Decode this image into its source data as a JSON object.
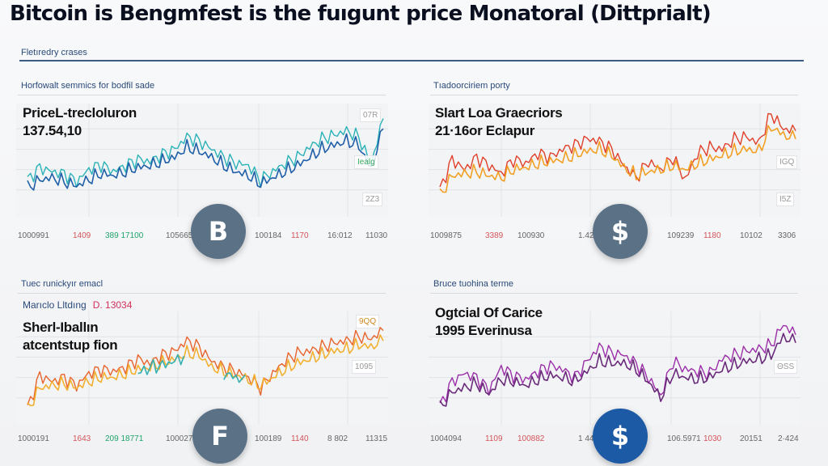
{
  "header": {
    "title": "Bitcoin is Bengmfest is the fuıgunt price Monatoral (Dittprialt)",
    "subheading": "Fletıredry crases"
  },
  "panels": [
    {
      "caption": "Horfowalt semmics for bodfil sade",
      "label_line1": "PriceL-trecloluron",
      "label_line2": "137.54,10",
      "badges": [
        "07R",
        "Iealg",
        "2Z3"
      ],
      "coin_glyph": "B",
      "coin_color": "#5b7186",
      "ticks": [
        {
          "text": "1000991",
          "color": "gray"
        },
        {
          "text": "1409",
          "color": "red"
        },
        {
          "text": "389 17100",
          "color": "green"
        },
        {
          "text": "105665",
          "color": "gray"
        },
        {
          "text": "100184",
          "color": "gray"
        },
        {
          "text": "1170",
          "color": "red"
        },
        {
          "text": "16:012",
          "color": "gray"
        },
        {
          "text": "11030",
          "color": "gray"
        }
      ],
      "series_colors": [
        "#2bb3b8",
        "#1f5fa8"
      ]
    },
    {
      "caption": "Tıadoorciriem porty",
      "label_line1": "Slart Loa Graecriors",
      "label_line2": "21·16or Eclapur",
      "badges": [
        "IGQ",
        "I5Z"
      ],
      "coin_glyph": "$",
      "coin_color": "#5b7186",
      "ticks": [
        {
          "text": "1009875",
          "color": "gray"
        },
        {
          "text": "3389",
          "color": "red"
        },
        {
          "text": "100930",
          "color": "gray"
        },
        {
          "text": "1.421991",
          "color": "gray"
        },
        {
          "text": "109239",
          "color": "gray"
        },
        {
          "text": "1180",
          "color": "red"
        },
        {
          "text": "10102",
          "color": "gray"
        },
        {
          "text": "3306",
          "color": "gray"
        }
      ],
      "series_colors": [
        "#e0402a",
        "#f2a024"
      ]
    },
    {
      "caption": "Tuec runickyır emacl",
      "meta_label": "Marıclo Lltdıng",
      "meta_value": "D. 13034",
      "label_line1": "Sherl-Iballın",
      "label_line2": "atcentstup fion",
      "badges": [
        "9QQ",
        "1095"
      ],
      "coin_glyph": "F",
      "coin_color": "#5b7186",
      "ticks": [
        {
          "text": "1000191",
          "color": "gray"
        },
        {
          "text": "1643",
          "color": "red"
        },
        {
          "text": "209 18771",
          "color": "green"
        },
        {
          "text": "100027",
          "color": "gray"
        },
        {
          "text": "100189",
          "color": "gray"
        },
        {
          "text": "1140",
          "color": "red"
        },
        {
          "text": "8 802",
          "color": "gray"
        },
        {
          "text": "11315",
          "color": "gray"
        }
      ],
      "series_colors": [
        "#e8642c",
        "#f2b030",
        "#35b0b0"
      ]
    },
    {
      "caption": "Bruce tuohina terme",
      "label_line1": "Ogtcial Of Carice",
      "label_line2": "1995 Everinusa",
      "badges": [
        "ΘSS"
      ],
      "coin_glyph": "$",
      "coin_color": "#1c5aa6",
      "ticks": [
        {
          "text": "1004094",
          "color": "gray"
        },
        {
          "text": "1109",
          "color": "red"
        },
        {
          "text": "100882",
          "color": "red"
        },
        {
          "text": "1 441005",
          "color": "gray"
        },
        {
          "text": "106.5971",
          "color": "gray"
        },
        {
          "text": "1030",
          "color": "red"
        },
        {
          "text": "20151",
          "color": "gray"
        },
        {
          "text": "2·424",
          "color": "gray"
        }
      ],
      "series_colors": [
        "#9b2fa8",
        "#6a2a7a"
      ]
    }
  ],
  "chart_data": [
    {
      "type": "line",
      "title": "PriceL-trecloluron 137.54,10",
      "x": [
        0,
        1,
        2,
        3,
        4,
        5,
        6,
        7,
        8,
        9,
        10,
        11,
        12,
        13,
        14,
        15,
        16,
        17,
        18,
        19,
        20,
        21,
        22,
        23,
        24,
        25,
        26,
        27,
        28,
        29
      ],
      "series": [
        {
          "name": "teal",
          "values": [
            30,
            42,
            38,
            36,
            28,
            40,
            45,
            38,
            44,
            50,
            48,
            55,
            60,
            72,
            68,
            60,
            52,
            46,
            44,
            30,
            38,
            46,
            52,
            62,
            70,
            74,
            78,
            72,
            45,
            90
          ]
        },
        {
          "name": "blue",
          "values": [
            22,
            30,
            32,
            28,
            24,
            30,
            36,
            34,
            38,
            42,
            44,
            48,
            52,
            62,
            58,
            52,
            44,
            38,
            34,
            26,
            32,
            38,
            44,
            52,
            60,
            64,
            68,
            64,
            40,
            80
          ]
        }
      ],
      "tick_labels": [
        "1000991",
        "1409",
        "389 17100",
        "105665",
        "100184",
        "1170",
        "16:012",
        "11030"
      ],
      "grid": true
    },
    {
      "type": "line",
      "title": "Slart Loa Graecriors 21·16or Eclapur",
      "x": [
        0,
        1,
        2,
        3,
        4,
        5,
        6,
        7,
        8,
        9,
        10,
        11,
        12,
        13,
        14,
        15,
        16,
        17,
        18,
        19,
        20,
        21,
        22,
        23,
        24,
        25,
        26,
        27,
        28,
        29
      ],
      "series": [
        {
          "name": "red",
          "values": [
            20,
            50,
            40,
            52,
            44,
            36,
            50,
            46,
            56,
            52,
            60,
            64,
            70,
            68,
            60,
            44,
            32,
            48,
            40,
            52,
            30,
            56,
            62,
            60,
            70,
            72,
            66,
            95,
            80,
            78
          ]
        },
        {
          "name": "orange",
          "values": [
            14,
            34,
            36,
            38,
            34,
            32,
            40,
            42,
            46,
            48,
            50,
            54,
            58,
            60,
            54,
            42,
            34,
            38,
            40,
            44,
            40,
            46,
            50,
            54,
            58,
            60,
            58,
            82,
            74,
            70
          ]
        }
      ],
      "tick_labels": [
        "1009875",
        "3389",
        "100930",
        "1.421991",
        "109239",
        "1180",
        "10102",
        "3306"
      ],
      "grid": true
    },
    {
      "type": "line",
      "title": "Sherl-Iballın atcentstup fion",
      "x": [
        0,
        1,
        2,
        3,
        4,
        5,
        6,
        7,
        8,
        9,
        10,
        11,
        12,
        13,
        14,
        15,
        16,
        17,
        18,
        19,
        20,
        21,
        22,
        23,
        24,
        25,
        26,
        27,
        28,
        29
      ],
      "series": [
        {
          "name": "orange-red",
          "values": [
            10,
            42,
            36,
            40,
            32,
            44,
            48,
            46,
            50,
            58,
            54,
            62,
            66,
            76,
            70,
            56,
            50,
            46,
            40,
            30,
            44,
            56,
            64,
            66,
            70,
            74,
            76,
            80,
            78,
            86
          ]
        },
        {
          "name": "amber",
          "values": [
            8,
            30,
            32,
            34,
            30,
            36,
            40,
            40,
            44,
            48,
            50,
            54,
            58,
            64,
            62,
            50,
            46,
            42,
            38,
            32,
            40,
            48,
            54,
            58,
            62,
            66,
            68,
            72,
            70,
            76
          ]
        },
        {
          "name": "teal",
          "values": [
            null,
            null,
            null,
            null,
            null,
            null,
            null,
            null,
            null,
            44,
            50,
            52,
            56,
            62,
            null,
            null,
            44,
            40,
            36,
            null,
            null,
            44,
            null,
            null,
            null,
            null,
            null,
            74,
            null,
            null
          ]
        }
      ],
      "tick_labels": [
        "1000191",
        "1643",
        "209 18771",
        "100027",
        "100189",
        "1140",
        "8 802",
        "11315"
      ],
      "grid": true
    },
    {
      "type": "line",
      "title": "Ogtcial Of Carice 1995 Everinusa",
      "x": [
        0,
        1,
        2,
        3,
        4,
        5,
        6,
        7,
        8,
        9,
        10,
        11,
        12,
        13,
        14,
        15,
        16,
        17,
        18,
        19,
        20,
        21,
        22,
        23,
        24,
        25,
        26,
        27,
        28,
        29
      ],
      "series": [
        {
          "name": "purple",
          "values": [
            12,
            36,
            44,
            40,
            28,
            50,
            42,
            38,
            46,
            52,
            48,
            40,
            56,
            70,
            64,
            62,
            54,
            40,
            22,
            56,
            48,
            46,
            44,
            58,
            62,
            66,
            68,
            72,
            92,
            82
          ]
        },
        {
          "name": "dark-purple",
          "values": [
            10,
            26,
            30,
            34,
            24,
            38,
            36,
            32,
            38,
            42,
            40,
            36,
            46,
            56,
            54,
            54,
            48,
            36,
            20,
            44,
            40,
            38,
            40,
            48,
            52,
            56,
            58,
            62,
            80,
            74
          ]
        }
      ],
      "tick_labels": [
        "1004094",
        "1109",
        "100882",
        "1 441005",
        "106.5971",
        "1030",
        "20151",
        "2·424"
      ],
      "grid": true
    }
  ]
}
